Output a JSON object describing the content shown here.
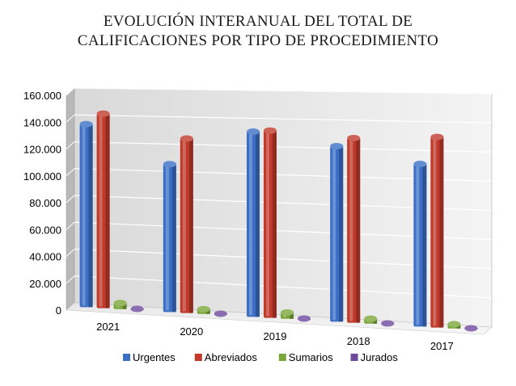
{
  "chart_data": {
    "type": "bar",
    "title": [
      "EVOLUCIÓN INTERANUAL DEL TOTAL DE",
      "CALIFICACIONES POR TIPO DE PROCEDIMIENTO"
    ],
    "categories": [
      "2021",
      "2020",
      "2019",
      "2018",
      "2017"
    ],
    "y_tick_labels": [
      "0",
      "20.000",
      "40.000",
      "60.000",
      "80.000",
      "100.000",
      "120.000",
      "140.000",
      "160.000"
    ],
    "ylim": [
      0,
      160000
    ],
    "grid": true,
    "legend_position": "bottom",
    "series": [
      {
        "name": "Urgentes",
        "color": "#3b6fc6",
        "values": [
          136000,
          108000,
          133000,
          124000,
          113000
        ]
      },
      {
        "name": "Abreviados",
        "color": "#c0392b",
        "values": [
          144000,
          127000,
          134000,
          130000,
          132000
        ]
      },
      {
        "name": "Sumarios",
        "color": "#7aa63a",
        "values": [
          4500,
          3500,
          4500,
          3500,
          3000
        ]
      },
      {
        "name": "Jurados",
        "color": "#6e4a9e",
        "values": [
          600,
          600,
          600,
          600,
          600
        ]
      }
    ]
  }
}
